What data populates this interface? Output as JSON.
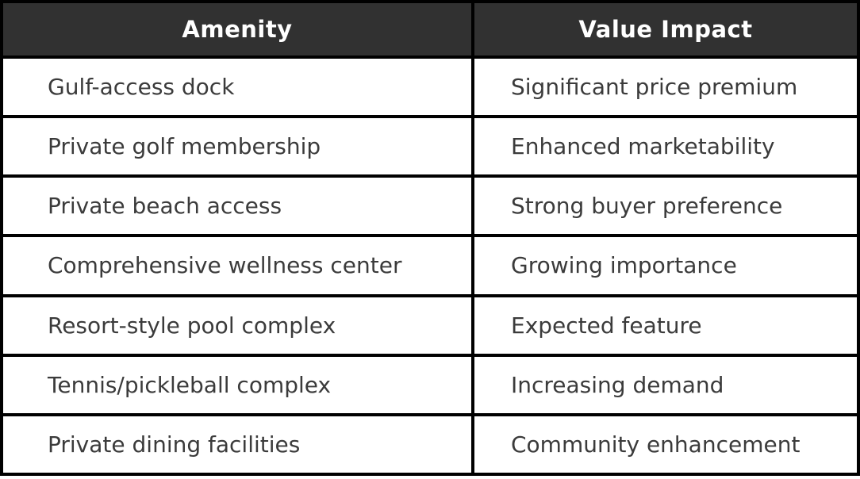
{
  "chart_data": {
    "type": "table",
    "columns": [
      "Amenity",
      "Value Impact"
    ],
    "rows": [
      [
        "Gulf-access dock",
        "Significant price premium"
      ],
      [
        "Private golf membership",
        "Enhanced marketability"
      ],
      [
        "Private beach access",
        "Strong buyer preference"
      ],
      [
        "Comprehensive wellness center",
        "Growing importance"
      ],
      [
        "Resort-style pool complex",
        "Expected feature"
      ],
      [
        "Tennis/pickleball complex",
        "Increasing demand"
      ],
      [
        "Private dining facilities",
        "Community enhancement"
      ]
    ],
    "title": "",
    "legend": "none",
    "grid": "on"
  },
  "colors": {
    "header_bg": "#313131",
    "header_text": "#ffffff",
    "body_text": "#3b3b3b",
    "border": "#000000",
    "cell_bg": "#ffffff"
  }
}
